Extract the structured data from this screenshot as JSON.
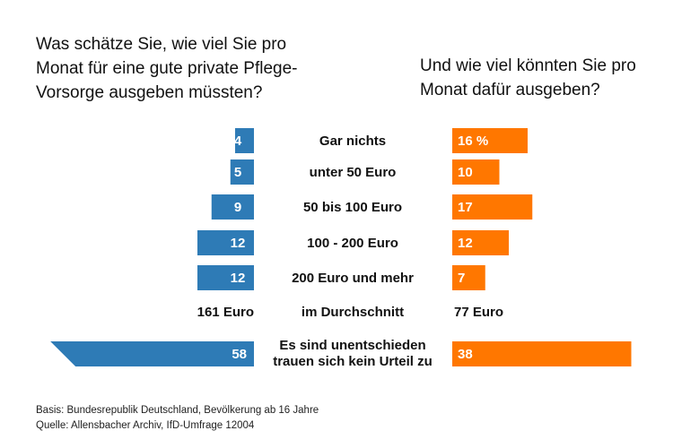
{
  "questions": {
    "left": "Was schätze Sie, wie viel Sie pro\nMonat für eine gute private Pflege-\nVorsorge ausgeben müssten?",
    "right": "Und wie viel könnten Sie pro\nMonat dafür ausgeben?"
  },
  "colors": {
    "left": "#2e7bb6",
    "right": "#ff7700"
  },
  "chart_data": {
    "type": "bar",
    "categories": [
      "Gar nichts",
      "unter 50 Euro",
      "50 bis 100 Euro",
      "100 - 200 Euro",
      "200 Euro und mehr"
    ],
    "series": [
      {
        "values": [
          4,
          5,
          9,
          12,
          12
        ],
        "labels": [
          "4",
          "5",
          "9",
          "12",
          "12"
        ]
      },
      {
        "values": [
          16,
          10,
          17,
          12,
          7
        ],
        "labels": [
          "16 %",
          "10",
          "17",
          "12",
          "7"
        ]
      }
    ],
    "average": {
      "label": "im Durchschnitt",
      "left": "161 Euro",
      "right": "77 Euro"
    },
    "undecided": {
      "label_line1": "Es sind unentschieden",
      "label_line2": "trauen sich kein Urteil zu",
      "left": 58,
      "right": 38
    }
  },
  "footer": {
    "basis": "Basis: Bundesrepublik Deutschland, Bevölkerung ab 16 Jahre",
    "source": "Quelle: Allensbacher Archiv, IfD-Umfrage 12004"
  }
}
